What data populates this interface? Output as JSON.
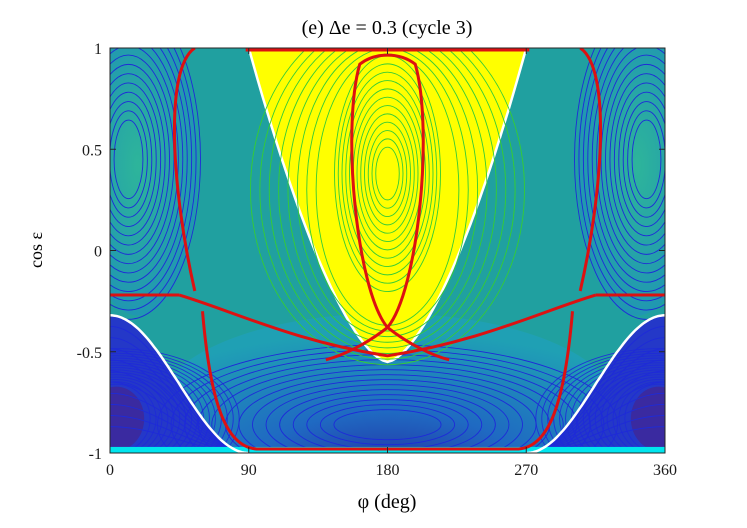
{
  "chart_data": {
    "type": "contour",
    "title": "(e) Δe = 0.3 (cycle 3)",
    "xlabel": "φ (deg)",
    "ylabel": "cos ε",
    "xlim": [
      0,
      360
    ],
    "ylim": [
      -1,
      1
    ],
    "x_ticks": [
      "0",
      "90",
      "180",
      "270",
      "360"
    ],
    "y_ticks": [
      "1",
      "0.5",
      "0",
      "-0.5",
      "-1"
    ],
    "grid": false,
    "colors": {
      "background_field": "#20a0a0",
      "inner_region": "#ffff00",
      "contour_lines_outer": "#1e2ad8",
      "contour_lines_inner": "#35cc35",
      "separatrix": "#dd1111",
      "boundary": "#ffffff",
      "bottom_band": "#00e5ee",
      "centre_deep": "#3a2aa0"
    },
    "regions": [
      {
        "name": "inner-yellow-region",
        "x_range": [
          90,
          270
        ],
        "cos_range": [
          -0.55,
          1.0
        ]
      },
      {
        "name": "lower-blue-regions",
        "x_ranges": [
          [
            0,
            90
          ],
          [
            270,
            360
          ]
        ],
        "cos_range": [
          -1.0,
          -0.32
        ]
      }
    ],
    "separatrix_points": {
      "upper_left_lobe_phi": 50,
      "upper_right_lobe_phi": 310,
      "horizontal_level_cos": -0.22,
      "inner_x_point": {
        "phi": 180,
        "cos": -0.38
      },
      "bottom_level_cos": -0.98
    }
  }
}
